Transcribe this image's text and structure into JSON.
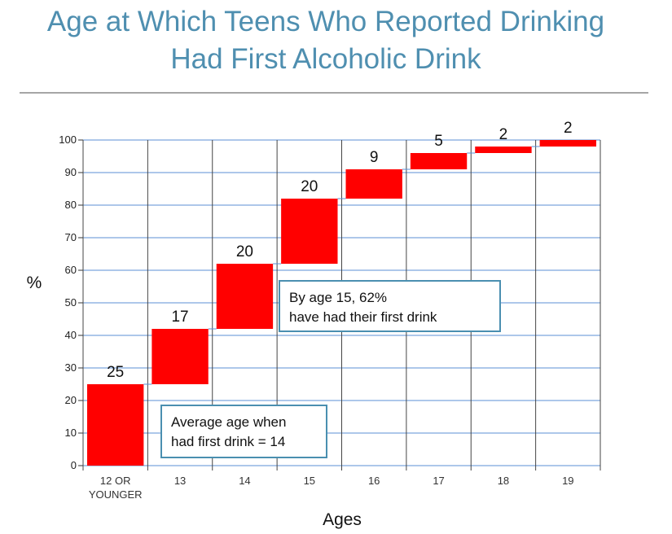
{
  "chart_data": {
    "type": "bar",
    "subtype": "waterfall",
    "title": "Age at Which Teens Who Reported Drinking Had First Alcoholic Drink",
    "title_lines": [
      "Age at Which Teens Who Reported Drinking",
      "Had First Alcoholic Drink"
    ],
    "xlabel": "Ages",
    "ylabel": "%",
    "ylim": [
      0,
      100
    ],
    "yticks": [
      0,
      10,
      20,
      30,
      40,
      50,
      60,
      70,
      80,
      90,
      100
    ],
    "categories": [
      "12 OR YOUNGER",
      "13",
      "14",
      "15",
      "16",
      "17",
      "18",
      "19"
    ],
    "category_lines": [
      [
        "12 OR",
        "YOUNGER"
      ],
      [
        "13"
      ],
      [
        "14"
      ],
      [
        "15"
      ],
      [
        "16"
      ],
      [
        "17"
      ],
      [
        "18"
      ],
      [
        "19"
      ]
    ],
    "values": [
      25,
      17,
      20,
      20,
      9,
      5,
      2,
      2
    ],
    "data_labels": [
      "25",
      "17",
      "20",
      "20",
      "9",
      "5",
      "2",
      "2"
    ],
    "bar_color": "#ff0000",
    "grid": true,
    "annotations": [
      {
        "lines": [
          "By age 15, 62%",
          "have had their first drink"
        ]
      },
      {
        "lines": [
          "Average age when",
          "had first drink = 14"
        ]
      }
    ]
  },
  "colors": {
    "title": "#4f8fb0",
    "grid_h": "#5b8fd6",
    "grid_v": "#444444",
    "annotation_border": "#4a8fb0"
  }
}
